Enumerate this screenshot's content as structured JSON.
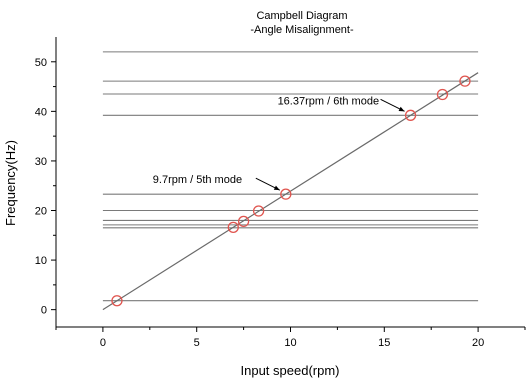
{
  "chart_data": {
    "type": "line",
    "title": "Campbell Diagram",
    "subtitle": "-Angle Misalignment-",
    "xlabel": "Input speed(rpm)",
    "ylabel": "Frequency(Hz)",
    "xlim": [
      -2.5,
      22.5
    ],
    "ylim": [
      -3.5,
      55
    ],
    "xticks": [
      0,
      5,
      10,
      15,
      20
    ],
    "yticks": [
      0,
      10,
      20,
      30,
      40,
      50
    ],
    "mode_frequencies": [
      1.8,
      16.5,
      17.1,
      18.0,
      20.0,
      23.3,
      39.2,
      43.5,
      46.1,
      52.0
    ],
    "excitation_line": {
      "x": [
        0,
        20
      ],
      "y": [
        0,
        47.8
      ]
    },
    "intersections": [
      {
        "x": 0.75,
        "y": 1.8
      },
      {
        "x": 6.95,
        "y": 16.6
      },
      {
        "x": 7.5,
        "y": 17.8
      },
      {
        "x": 8.3,
        "y": 19.9
      },
      {
        "x": 9.75,
        "y": 23.3
      },
      {
        "x": 16.4,
        "y": 39.2
      },
      {
        "x": 18.1,
        "y": 43.4
      },
      {
        "x": 19.3,
        "y": 46.1
      }
    ],
    "annotations": [
      {
        "text": "9.7rpm / 5th mode",
        "x": 9.75,
        "y": 23.3
      },
      {
        "text": "16.37rpm / 6th mode",
        "x": 16.4,
        "y": 39.2
      }
    ]
  }
}
